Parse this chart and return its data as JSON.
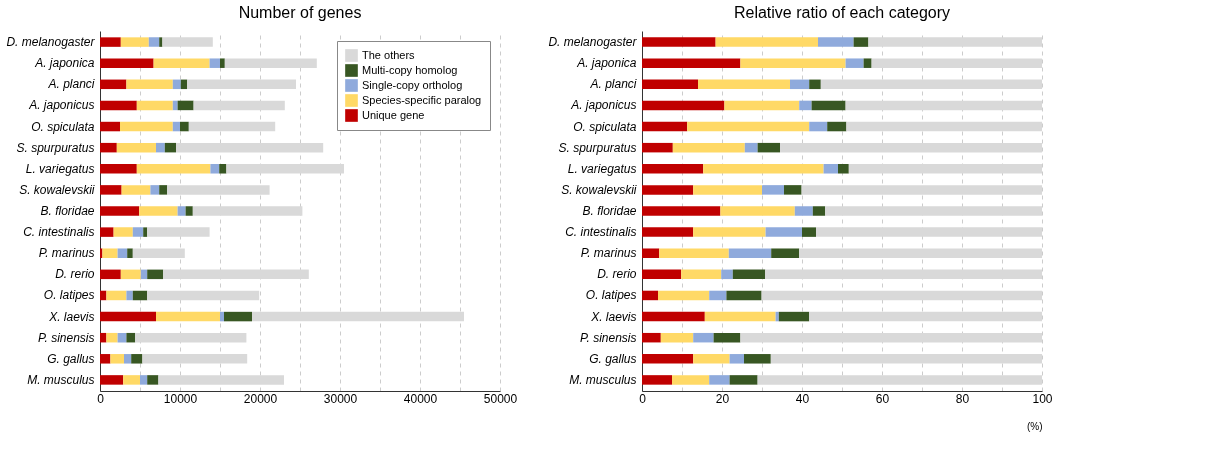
{
  "chart_data": [
    {
      "type": "bar",
      "title": "Number of genes",
      "orientation": "horizontal",
      "stacked": true,
      "grid": "x",
      "legend": "top right",
      "categories": [
        "D. melanogaster",
        "A. japonica",
        "A. planci",
        "A. japonicus",
        "O. spiculata",
        "S. spurpuratus",
        "L. variegatus",
        "S. kowalevskii",
        "B. floridae",
        "C. intestinalis",
        "P. marinus",
        "D. rerio",
        "O. latipes",
        "X. laevis",
        "P. sinensis",
        "G. gallus",
        "M. musculus"
      ],
      "xlim": [
        0,
        50000
      ],
      "xticks": [
        0,
        {
          "value": 5000,
          "label": null
        },
        10000,
        {
          "value": 15000,
          "label": null
        },
        20000,
        {
          "value": 25000,
          "label": null
        },
        30000,
        {
          "value": 35000,
          "label": null
        },
        40000,
        {
          "value": 45000,
          "label": null
        },
        50000
      ],
      "series": [
        {
          "name": "Unique gene",
          "color": "#c00000",
          "values": [
            2600,
            6700,
            3300,
            4600,
            2500,
            2100,
            4600,
            2700,
            4900,
            1700,
            300,
            2600,
            800,
            7000,
            800,
            1300,
            2900
          ]
        },
        {
          "name": "Species-specific paralog",
          "color": "#ffd966",
          "values": [
            3500,
            7000,
            5800,
            4500,
            6600,
            4900,
            9200,
            3600,
            4800,
            2400,
            1900,
            2500,
            2500,
            8000,
            1400,
            1700,
            2100
          ]
        },
        {
          "name": "Single-copy ortholog",
          "color": "#8faadc",
          "values": [
            1300,
            1300,
            1000,
            600,
            900,
            1100,
            1100,
            1100,
            1000,
            1300,
            1200,
            800,
            800,
            500,
            1100,
            900,
            900
          ]
        },
        {
          "name": "Multi-copy homolog",
          "color": "#385723",
          "values": [
            400,
            600,
            800,
            2000,
            1100,
            1400,
            900,
            1000,
            900,
            500,
            700,
            2000,
            1800,
            3500,
            1100,
            1400,
            1400
          ]
        },
        {
          "name": "The others",
          "color": "#d9d9d9",
          "values": [
            6300,
            11500,
            13600,
            11400,
            10800,
            18400,
            14700,
            12800,
            13700,
            7800,
            6500,
            18200,
            14000,
            26500,
            13900,
            13100,
            15700
          ]
        }
      ]
    },
    {
      "type": "bar",
      "title": "Relative ratio of each category",
      "xlabel": "(%)",
      "orientation": "horizontal",
      "stacked": true,
      "grid": "x",
      "categories": [
        "D. melanogaster",
        "A. japonica",
        "A. planci",
        "A. japonicus",
        "O. spiculata",
        "S. spurpuratus",
        "L. variegatus",
        "S. kowalevskii",
        "B. floridae",
        "C. intestinalis",
        "P. marinus",
        "D. rerio",
        "O. latipes",
        "X. laevis",
        "P. sinensis",
        "G. gallus",
        "M. musculus"
      ],
      "xlim": [
        0,
        100
      ],
      "xticks": [
        0,
        {
          "value": 10,
          "label": null
        },
        20,
        {
          "value": 30,
          "label": null
        },
        40,
        {
          "value": 50,
          "label": null
        },
        60,
        {
          "value": 70,
          "label": null
        },
        80,
        {
          "value": 90,
          "label": null
        },
        100
      ],
      "series": [
        {
          "color": "#c00000",
          "values": [
            18.4,
            24.6,
            14.0,
            20.6,
            11.3,
            7.7,
            15.3,
            12.8,
            19.6,
            12.8,
            4.3,
            9.8,
            4.0,
            15.7,
            4.7,
            12.8,
            7.5
          ]
        },
        {
          "color": "#ffd966",
          "values": [
            25.6,
            26.3,
            23.0,
            18.7,
            30.5,
            18.0,
            30.1,
            17.2,
            18.6,
            18.1,
            17.4,
            10.0,
            12.8,
            17.7,
            8.1,
            9.1,
            9.3
          ]
        },
        {
          "color": "#8faadc",
          "values": [
            8.9,
            4.5,
            4.8,
            3.1,
            4.5,
            3.2,
            3.6,
            5.5,
            4.5,
            9.1,
            10.6,
            2.9,
            4.3,
            0.8,
            5.1,
            3.6,
            5.1
          ]
        },
        {
          "color": "#385723",
          "values": [
            3.7,
            2.0,
            2.9,
            8.5,
            4.8,
            5.6,
            2.7,
            4.4,
            3.1,
            3.5,
            7.0,
            8.1,
            8.8,
            7.6,
            6.7,
            6.7,
            7.0
          ]
        },
        {
          "color": "#d9d9d9",
          "values": [
            43.4,
            42.6,
            55.3,
            49.1,
            48.9,
            65.5,
            48.3,
            60.1,
            54.2,
            56.5,
            60.7,
            69.2,
            70.1,
            58.2,
            75.4,
            67.8,
            71.1
          ]
        }
      ]
    }
  ]
}
